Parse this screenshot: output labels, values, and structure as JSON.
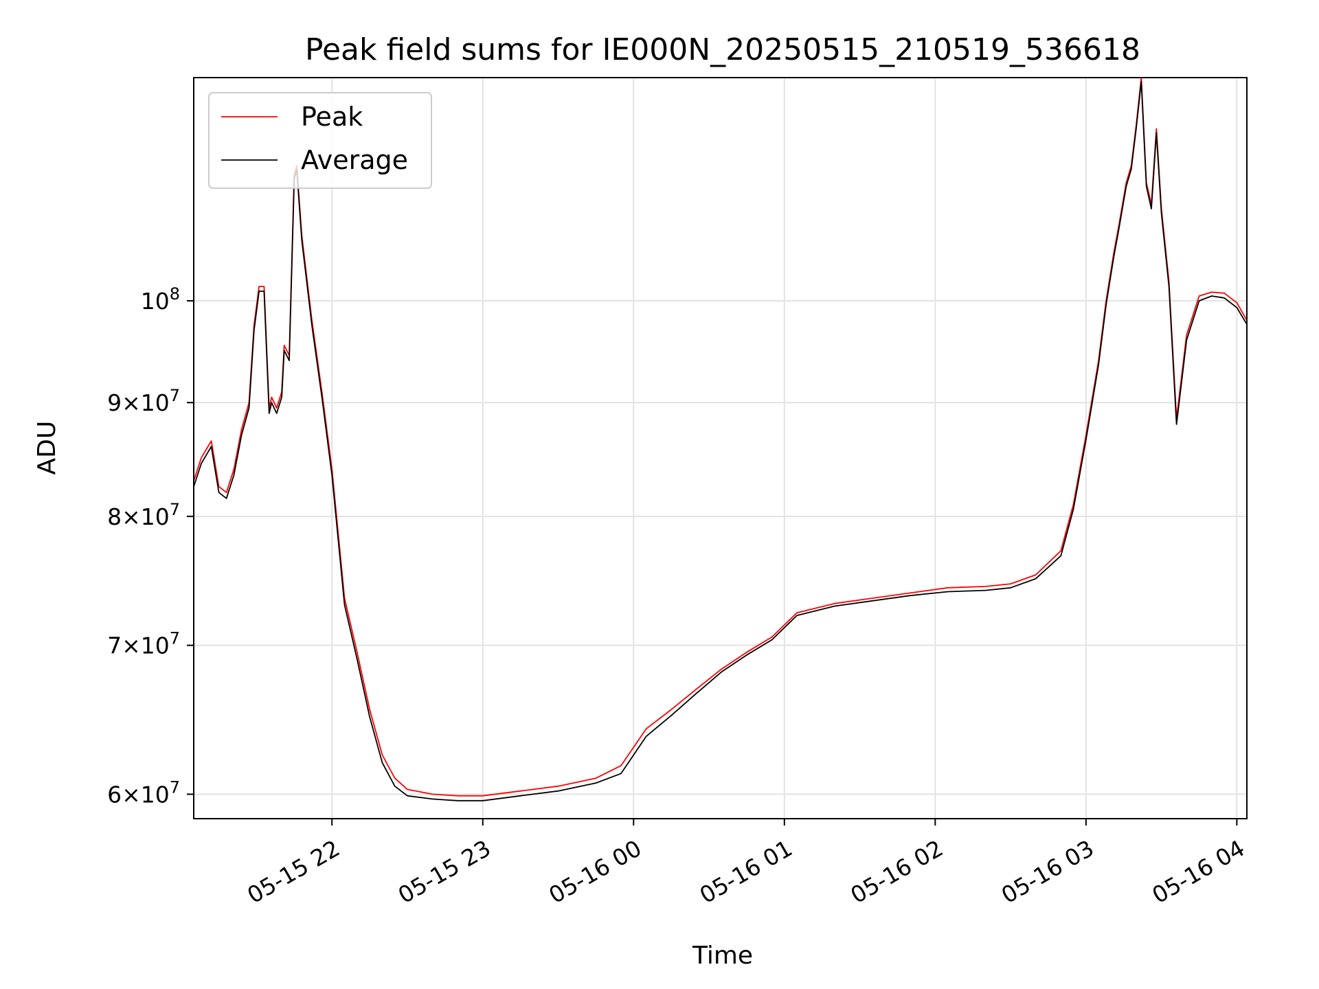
{
  "chart_data": {
    "type": "line",
    "title": "Peak field sums for IE000N_20250515_210519_536618",
    "xlabel": "Time",
    "ylabel": "ADU",
    "y_scale": "log",
    "xlim": [
      "2025-05-15 21:05",
      "2025-05-16 04:04"
    ],
    "ylim": [
      58500000,
      126000000
    ],
    "grid": true,
    "legend_position": "top-left",
    "x_ticks": [
      {
        "t": "2025-05-15 22:00",
        "label": "05-15 22"
      },
      {
        "t": "2025-05-15 23:00",
        "label": "05-15 23"
      },
      {
        "t": "2025-05-16 00:00",
        "label": "05-16 00"
      },
      {
        "t": "2025-05-16 01:00",
        "label": "05-16 01"
      },
      {
        "t": "2025-05-16 02:00",
        "label": "05-16 02"
      },
      {
        "t": "2025-05-16 03:00",
        "label": "05-16 03"
      },
      {
        "t": "2025-05-16 04:00",
        "label": "05-16 04"
      }
    ],
    "y_ticks": [
      {
        "v": 60000000,
        "mant": "6",
        "exp": "7"
      },
      {
        "v": 70000000,
        "mant": "7",
        "exp": "7"
      },
      {
        "v": 80000000,
        "mant": "8",
        "exp": "7"
      },
      {
        "v": 90000000,
        "mant": "9",
        "exp": "7"
      },
      {
        "v": 100000000,
        "mant": "",
        "exp": "8"
      }
    ],
    "x": [
      "2025-05-15 21:05",
      "2025-05-15 21:08",
      "2025-05-15 21:12",
      "2025-05-15 21:15",
      "2025-05-15 21:18",
      "2025-05-15 21:21",
      "2025-05-15 21:24",
      "2025-05-15 21:27",
      "2025-05-15 21:29",
      "2025-05-15 21:31",
      "2025-05-15 21:33",
      "2025-05-15 21:35",
      "2025-05-15 21:36",
      "2025-05-15 21:38",
      "2025-05-15 21:40",
      "2025-05-15 21:41",
      "2025-05-15 21:43",
      "2025-05-15 21:45",
      "2025-05-15 21:46",
      "2025-05-15 21:48",
      "2025-05-15 21:52",
      "2025-05-15 21:56",
      "2025-05-15 22:00",
      "2025-05-15 22:05",
      "2025-05-15 22:10",
      "2025-05-15 22:15",
      "2025-05-15 22:20",
      "2025-05-15 22:25",
      "2025-05-15 22:30",
      "2025-05-15 22:40",
      "2025-05-15 22:50",
      "2025-05-15 23:00",
      "2025-05-15 23:15",
      "2025-05-15 23:30",
      "2025-05-15 23:45",
      "2025-05-15 23:55",
      "2025-05-16 00:05",
      "2025-05-16 00:15",
      "2025-05-16 00:25",
      "2025-05-16 00:35",
      "2025-05-16 00:45",
      "2025-05-16 00:55",
      "2025-05-16 01:05",
      "2025-05-16 01:20",
      "2025-05-16 01:35",
      "2025-05-16 01:50",
      "2025-05-16 02:05",
      "2025-05-16 02:20",
      "2025-05-16 02:30",
      "2025-05-16 02:40",
      "2025-05-16 02:50",
      "2025-05-16 02:55",
      "2025-05-16 03:00",
      "2025-05-16 03:05",
      "2025-05-16 03:08",
      "2025-05-16 03:11",
      "2025-05-16 03:13",
      "2025-05-16 03:16",
      "2025-05-16 03:18",
      "2025-05-16 03:20",
      "2025-05-16 03:22",
      "2025-05-16 03:24",
      "2025-05-16 03:26",
      "2025-05-16 03:28",
      "2025-05-16 03:30",
      "2025-05-16 03:33",
      "2025-05-16 03:36",
      "2025-05-16 03:40",
      "2025-05-16 03:45",
      "2025-05-16 03:50",
      "2025-05-16 03:55",
      "2025-05-16 04:00",
      "2025-05-16 04:04"
    ],
    "series": [
      {
        "name": "Peak",
        "color": "#ff0000",
        "values": [
          83000000,
          85000000,
          86500000,
          82500000,
          82000000,
          84000000,
          87500000,
          90000000,
          97500000,
          101500000,
          101500000,
          89500000,
          90500000,
          89500000,
          91000000,
          95500000,
          94500000,
          114000000,
          115000000,
          107000000,
          98000000,
          91000000,
          84000000,
          73500000,
          69500000,
          65500000,
          62500000,
          61000000,
          60300000,
          60000000,
          59900000,
          59900000,
          60200000,
          60500000,
          61000000,
          61800000,
          64200000,
          65500000,
          66900000,
          68300000,
          69500000,
          70600000,
          72400000,
          73100000,
          73500000,
          73900000,
          74300000,
          74400000,
          74600000,
          75300000,
          77200000,
          81000000,
          87000000,
          94000000,
          100000000,
          105000000,
          108000000,
          113000000,
          115000000,
          120000000,
          126000000,
          113000000,
          110500000,
          119500000,
          110000000,
          102000000,
          88500000,
          96500000,
          100500000,
          100900000,
          100800000,
          99800000,
          98000000
        ]
      },
      {
        "name": "Average",
        "color": "#000000",
        "values": [
          82500000,
          84500000,
          86000000,
          82000000,
          81500000,
          83500000,
          87000000,
          89500000,
          97000000,
          101000000,
          101000000,
          89000000,
          90000000,
          89000000,
          90500000,
          95000000,
          94000000,
          113500000,
          114500000,
          106500000,
          97500000,
          90500000,
          83500000,
          73000000,
          69000000,
          65000000,
          62000000,
          60500000,
          59900000,
          59700000,
          59600000,
          59600000,
          59900000,
          60200000,
          60700000,
          61300000,
          63700000,
          65100000,
          66600000,
          68100000,
          69300000,
          70400000,
          72200000,
          72900000,
          73300000,
          73700000,
          74000000,
          74100000,
          74300000,
          75000000,
          76800000,
          80600000,
          86600000,
          93600000,
          99600000,
          104600000,
          107600000,
          112600000,
          114600000,
          119600000,
          125500000,
          112600000,
          110000000,
          119000000,
          109500000,
          101500000,
          88000000,
          96000000,
          100000000,
          100500000,
          100300000,
          99300000,
          97600000
        ]
      }
    ]
  }
}
